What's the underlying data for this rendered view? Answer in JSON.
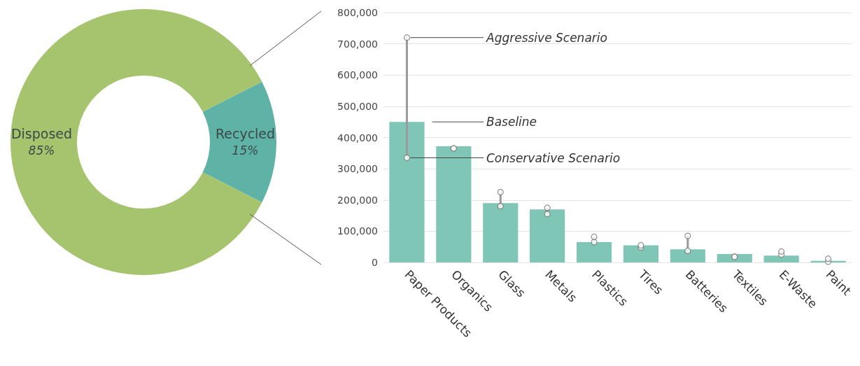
{
  "chart_data": [
    {
      "type": "donut",
      "categories": [
        "Recycled",
        "Disposed"
      ],
      "values": [
        15,
        85
      ],
      "colors": [
        "#5fb3a6",
        "#a6c46e"
      ],
      "value_labels": [
        "15%",
        "85%"
      ]
    },
    {
      "type": "bar",
      "categories": [
        "Paper Products",
        "Organics",
        "Glass",
        "Metals",
        "Plastics",
        "Tires",
        "Batteries",
        "Textiles",
        "E-Waste",
        "Paint"
      ],
      "series": [
        {
          "name": "Baseline",
          "type": "bar",
          "color": "#80c6b6",
          "values": [
            450000,
            372000,
            190000,
            170000,
            65000,
            55000,
            42000,
            27000,
            22000,
            5000
          ]
        },
        {
          "name": "Conservative Scenario",
          "type": "scatter",
          "color": "#ffffff",
          "values": [
            335000,
            365000,
            180000,
            155000,
            65000,
            48000,
            37000,
            18000,
            25000,
            2000
          ]
        },
        {
          "name": "Aggressive Scenario",
          "type": "scatter",
          "color": "#ffffff",
          "values": [
            720000,
            365000,
            225000,
            175000,
            82000,
            55000,
            85000,
            18000,
            35000,
            12000
          ]
        }
      ],
      "marker": "circle",
      "ylim": [
        0,
        800000
      ],
      "yticks": [
        {
          "value": 0,
          "label": "0"
        },
        {
          "value": 100000,
          "label": "100,000"
        },
        {
          "value": 200000,
          "label": "200,000"
        },
        {
          "value": 300000,
          "label": "300,000"
        },
        {
          "value": 400000,
          "label": "400,000"
        },
        {
          "value": 500000,
          "label": "500,000"
        },
        {
          "value": 600000,
          "label": "600,000"
        },
        {
          "value": 700000,
          "label": "700,000"
        },
        {
          "value": 800000,
          "label": "800,000"
        }
      ],
      "grid": "y"
    }
  ]
}
